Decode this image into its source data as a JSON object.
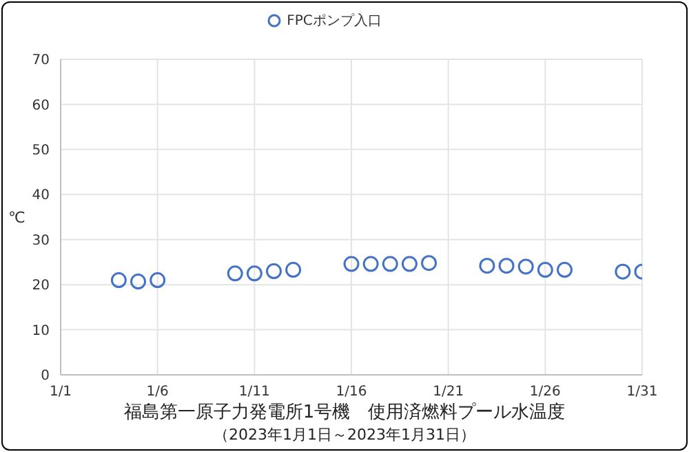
{
  "chart_data": {
    "type": "scatter",
    "title": "福島第一原子力発電所1号機　使用済燃料プール水温度",
    "subtitle": "（2023年1月1日～2023年1月31日）",
    "ylabel": "℃",
    "x": [
      "2023-01-04",
      "2023-01-05",
      "2023-01-06",
      "2023-01-10",
      "2023-01-11",
      "2023-01-12",
      "2023-01-13",
      "2023-01-16",
      "2023-01-17",
      "2023-01-18",
      "2023-01-19",
      "2023-01-20",
      "2023-01-23",
      "2023-01-24",
      "2023-01-25",
      "2023-01-26",
      "2023-01-27",
      "2023-01-30",
      "2023-01-31"
    ],
    "series": [
      {
        "name": "FPCポンプ入口",
        "color": "#4472c4",
        "values": [
          21.0,
          20.7,
          21.0,
          22.5,
          22.5,
          23.0,
          23.3,
          24.6,
          24.6,
          24.6,
          24.6,
          24.8,
          24.2,
          24.2,
          24.0,
          23.3,
          23.3,
          22.9,
          22.9
        ]
      }
    ],
    "xlim": [
      "2023-01-01",
      "2023-01-31"
    ],
    "xticks": [
      {
        "value": "2023-01-01",
        "label": "1/1"
      },
      {
        "value": "2023-01-06",
        "label": "1/6"
      },
      {
        "value": "2023-01-11",
        "label": "1/11"
      },
      {
        "value": "2023-01-16",
        "label": "1/16"
      },
      {
        "value": "2023-01-21",
        "label": "1/21"
      },
      {
        "value": "2023-01-26",
        "label": "1/26"
      },
      {
        "value": "2023-01-31",
        "label": "1/31"
      }
    ],
    "ylim": [
      0,
      70
    ],
    "yticks": [
      0,
      10,
      20,
      30,
      40,
      50,
      60,
      70
    ],
    "grid": true,
    "legend": "top",
    "marker": "circle"
  }
}
